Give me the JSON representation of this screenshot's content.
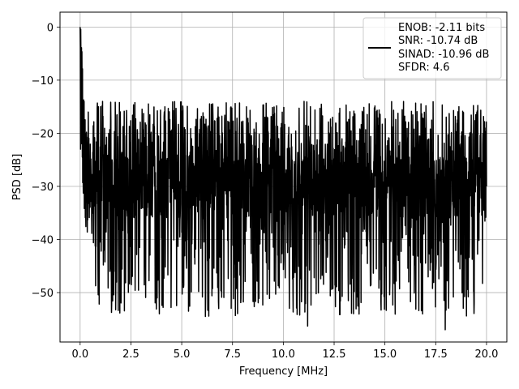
{
  "chart_data": {
    "type": "line",
    "title": "",
    "xlabel": "Frequency [MHz]",
    "ylabel": "PSD [dB]",
    "xlim": [
      -0.99,
      21.0
    ],
    "ylim": [
      -59.3,
      2.8
    ],
    "x_ticks": [
      0.0,
      2.5,
      5.0,
      7.5,
      10.0,
      12.5,
      15.0,
      17.5,
      20.0
    ],
    "x_tick_labels": [
      "0.0",
      "2.5",
      "5.0",
      "7.5",
      "10.0",
      "12.5",
      "15.0",
      "17.5",
      "20.0"
    ],
    "y_ticks": [
      0,
      -10,
      -20,
      -30,
      -40,
      -50
    ],
    "y_tick_labels": [
      "0",
      "−10",
      "−20",
      "−30",
      "−40",
      "−50"
    ],
    "grid": true,
    "legend_position": "top-right",
    "legend": {
      "line_color": "#000000",
      "lines": [
        "ENOB: -2.11 bits",
        "SNR: -10.74 dB",
        "SINAD: -10.96 dB",
        "SFDR: 4.6"
      ]
    },
    "series": [
      {
        "color": "#000000",
        "noise_floor_db": -30,
        "noise_top_db": -14,
        "noise_bottom_db": -56.5,
        "points": 2048,
        "x": [
          0.0,
          0.02,
          0.05,
          0.08,
          0.1,
          0.15,
          0.2,
          0.3,
          0.4,
          0.6,
          1.1,
          2.2,
          3.9,
          11.2,
          17.97,
          20.0
        ],
        "y": [
          0.0,
          -23.0,
          -9.0,
          -22.0,
          -12.5,
          -28.0,
          -14.0,
          -33.0,
          -16.0,
          -32.0,
          -14.0,
          -48.0,
          -54.0,
          -56.3,
          -57.0,
          -30.0
        ]
      }
    ]
  }
}
